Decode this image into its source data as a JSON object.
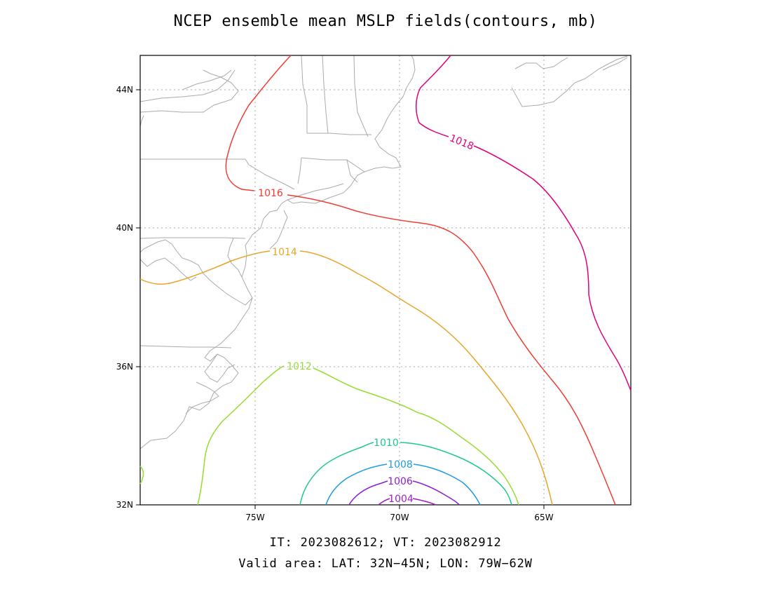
{
  "title": "NCEP ensemble mean MSLP fields(contours, mb)",
  "footer": {
    "line1": "IT: 2023082612; VT: 2023082912",
    "line2": "Valid area: LAT: 32N−45N; LON: 79W−62W"
  },
  "map": {
    "projection": "lat-lon",
    "lat_range": [
      32,
      45
    ],
    "lon_range": [
      -79,
      -62
    ],
    "grid": true,
    "coastline_color": "#aaaaaa",
    "lat_ticks": [
      {
        "value": 32,
        "label": "32N"
      },
      {
        "value": 36,
        "label": "36N"
      },
      {
        "value": 40,
        "label": "40N"
      },
      {
        "value": 44,
        "label": "44N"
      }
    ],
    "lon_ticks": [
      {
        "value": -75,
        "label": "75W"
      },
      {
        "value": -70,
        "label": "70W"
      },
      {
        "value": -65,
        "label": "65W"
      }
    ]
  },
  "contours": [
    {
      "level": 1018,
      "label": "1018",
      "color": "#e0007a"
    },
    {
      "level": 1016,
      "label": "1016",
      "color": "#f03c32"
    },
    {
      "level": 1014,
      "label": "1014",
      "color": "#e6a528"
    },
    {
      "level": 1012,
      "label": "1012",
      "color": "#96dc32"
    },
    {
      "level": 1010,
      "label": "1010",
      "color": "#1ec88c"
    },
    {
      "level": 1008,
      "label": "1008",
      "color": "#1e9be1"
    },
    {
      "level": 1006,
      "label": "1006",
      "color": "#8c1ed2"
    },
    {
      "level": 1004,
      "label": "1004",
      "color": "#a01ebe"
    }
  ]
}
